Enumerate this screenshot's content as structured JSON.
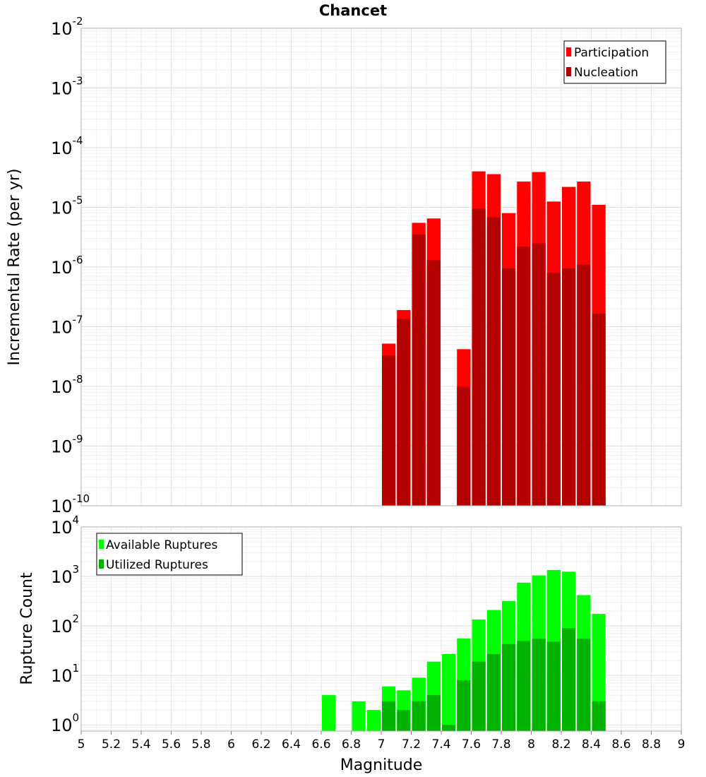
{
  "chart_data": [
    {
      "type": "bar",
      "title": "Chancet",
      "xlabel": "",
      "ylabel": "Incremental Rate (per yr)",
      "xlim": [
        5,
        9
      ],
      "ylim": [
        1e-10,
        0.01
      ],
      "yscale": "log",
      "grid": true,
      "legend": "top-right",
      "bin_width": 0.1,
      "y_ticks": [
        {
          "base": "10",
          "exp": "-10"
        },
        {
          "base": "10",
          "exp": "-9"
        },
        {
          "base": "10",
          "exp": "-8"
        },
        {
          "base": "10",
          "exp": "-7"
        },
        {
          "base": "10",
          "exp": "-6"
        },
        {
          "base": "10",
          "exp": "-5"
        },
        {
          "base": "10",
          "exp": "-4"
        },
        {
          "base": "10",
          "exp": "-3"
        },
        {
          "base": "10",
          "exp": "-2"
        }
      ],
      "series": [
        {
          "name": "Participation",
          "color": "#ff0000",
          "x": [
            7.05,
            7.15,
            7.25,
            7.35,
            7.55,
            7.65,
            7.75,
            7.85,
            7.95,
            8.05,
            8.15,
            8.25,
            8.35,
            8.45
          ],
          "values": [
            5.2e-08,
            1.9e-07,
            5.5e-06,
            6.5e-06,
            4.2e-08,
            4e-05,
            3.6e-05,
            8e-06,
            2.7e-05,
            3.9e-05,
            1.25e-05,
            2.2e-05,
            2.7e-05,
            1.1e-05
          ]
        },
        {
          "name": "Nucleation",
          "color": "#b30000",
          "x": [
            7.05,
            7.15,
            7.25,
            7.35,
            7.55,
            7.65,
            7.75,
            7.85,
            7.95,
            8.05,
            8.15,
            8.25,
            8.35,
            8.45
          ],
          "values": [
            3.3e-08,
            1.35e-07,
            3.5e-06,
            1.3e-06,
            1e-08,
            9.5e-06,
            6.8e-06,
            9.5e-07,
            2.2e-06,
            2.5e-06,
            8e-07,
            9.5e-07,
            1.1e-06,
            1.65e-07
          ]
        }
      ]
    },
    {
      "type": "bar",
      "xlabel": "Magnitude",
      "ylabel": "Rupture Count",
      "xlim": [
        5,
        9
      ],
      "ylim": [
        0.75,
        10000
      ],
      "yscale": "log",
      "grid": true,
      "legend": "top-left",
      "bin_width": 0.1,
      "x_ticks": [
        "5",
        "5.2",
        "5.4",
        "5.6",
        "5.8",
        "6",
        "6.2",
        "6.4",
        "6.6",
        "6.8",
        "7",
        "7.2",
        "7.4",
        "7.6",
        "7.8",
        "8",
        "8.2",
        "8.4",
        "8.6",
        "8.8",
        "9"
      ],
      "y_ticks": [
        {
          "base": "10",
          "exp": "0"
        },
        {
          "base": "10",
          "exp": "1"
        },
        {
          "base": "10",
          "exp": "2"
        },
        {
          "base": "10",
          "exp": "3"
        },
        {
          "base": "10",
          "exp": "4"
        }
      ],
      "series": [
        {
          "name": "Available Ruptures",
          "color": "#00ff00",
          "x": [
            6.65,
            6.85,
            6.95,
            7.05,
            7.15,
            7.25,
            7.35,
            7.45,
            7.55,
            7.65,
            7.75,
            7.85,
            7.95,
            8.05,
            8.15,
            8.25,
            8.35,
            8.45
          ],
          "values": [
            4,
            3,
            2,
            6,
            5,
            9,
            19,
            27,
            56,
            135,
            210,
            320,
            750,
            1050,
            1350,
            1250,
            420,
            175
          ]
        },
        {
          "name": "Utilized Ruptures",
          "color": "#00b300",
          "x": [
            7.05,
            7.15,
            7.25,
            7.35,
            7.45,
            7.55,
            7.65,
            7.75,
            7.85,
            7.95,
            8.05,
            8.15,
            8.25,
            8.35,
            8.45
          ],
          "values": [
            3,
            2,
            3,
            4,
            1,
            8,
            19,
            27,
            43,
            50,
            55,
            48,
            90,
            55,
            3
          ]
        }
      ]
    }
  ]
}
